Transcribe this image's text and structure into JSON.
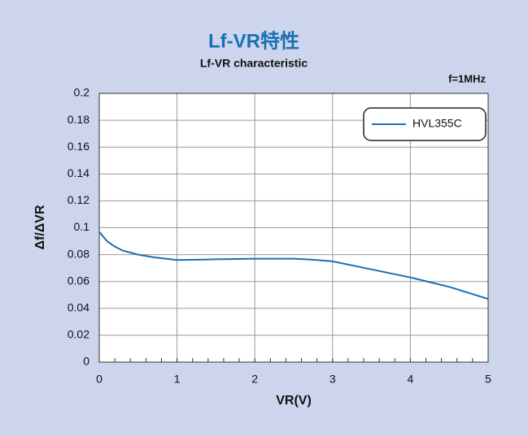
{
  "chart_data": {
    "type": "line",
    "title": "Lf-VR特性",
    "subtitle": "Lf-VR characteristic",
    "annotation": "f=1MHz",
    "xlabel": "VR(V)",
    "ylabel": "Δf/ΔVR",
    "xlim": [
      0,
      5
    ],
    "xticks": [
      0,
      1,
      2,
      3,
      4,
      5
    ],
    "ylim": [
      0,
      0.2
    ],
    "yticks": [
      0,
      0.02,
      0.04,
      0.06,
      0.08,
      0.1,
      0.12,
      0.14,
      0.16,
      0.18,
      0.2
    ],
    "grid": true,
    "legend": "upper right",
    "series": [
      {
        "name": "HVL355C",
        "color": "#1a6fb5",
        "x": [
          0,
          0.1,
          0.2,
          0.3,
          0.5,
          0.7,
          1,
          1.5,
          2,
          2.5,
          2.8,
          3,
          3.5,
          4,
          4.5,
          5
        ],
        "values": [
          0.097,
          0.09,
          0.086,
          0.083,
          0.08,
          0.078,
          0.076,
          0.0765,
          0.077,
          0.077,
          0.076,
          0.075,
          0.069,
          0.063,
          0.056,
          0.047
        ]
      }
    ]
  }
}
